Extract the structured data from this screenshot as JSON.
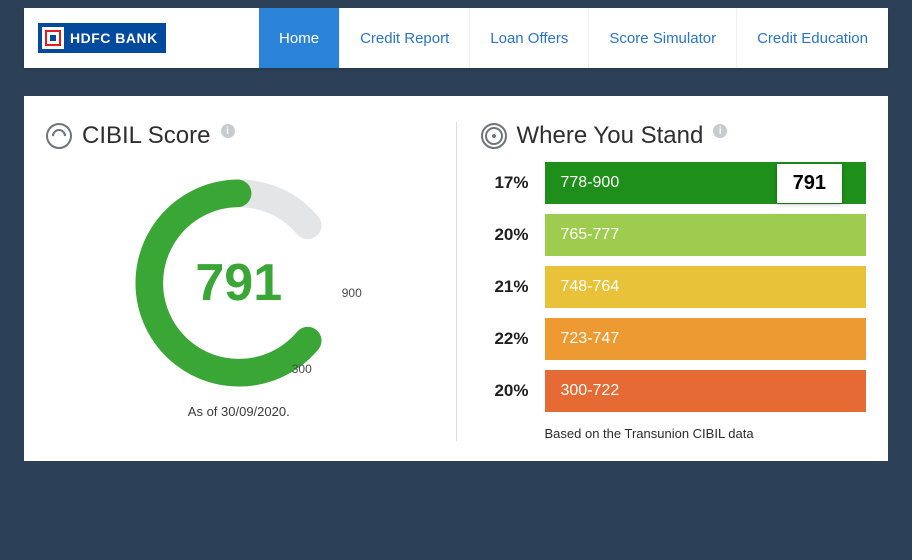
{
  "brand": {
    "name": "HDFC BANK"
  },
  "nav": {
    "items": [
      {
        "label": "Home",
        "active": true
      },
      {
        "label": "Credit Report",
        "active": false
      },
      {
        "label": "Loan Offers",
        "active": false
      },
      {
        "label": "Score Simulator",
        "active": false
      },
      {
        "label": "Credit Education",
        "active": false
      }
    ],
    "active_bg": "#2b83d8",
    "link_color": "#2b74c5"
  },
  "page_bg": "#2c4158",
  "cibil": {
    "title": "CIBIL Score",
    "score": "791",
    "score_color": "#3aa635",
    "min_label": "300",
    "max_label": "900",
    "as_of": "As of 30/09/2020.",
    "gauge": {
      "min": 300,
      "max": 900,
      "value": 791,
      "track_color": "#e3e5e7",
      "fill_color": "#3aa635",
      "thickness": 24,
      "start_angle_deg": 130,
      "sweep_deg": 280
    }
  },
  "stand": {
    "title": "Where You Stand",
    "footnote": "Based on the Transunion CIBIL data",
    "your_score_label": "791",
    "bands": [
      {
        "pct": "17%",
        "range": "778-900",
        "color": "#1e8f1a",
        "has_marker": true
      },
      {
        "pct": "20%",
        "range": "765-777",
        "color": "#9dcc4e",
        "has_marker": false
      },
      {
        "pct": "21%",
        "range": "748-764",
        "color": "#e8c33a",
        "has_marker": false
      },
      {
        "pct": "22%",
        "range": "723-747",
        "color": "#ed9a32",
        "has_marker": false
      },
      {
        "pct": "20%",
        "range": "300-722",
        "color": "#e56a34",
        "has_marker": false
      }
    ]
  }
}
